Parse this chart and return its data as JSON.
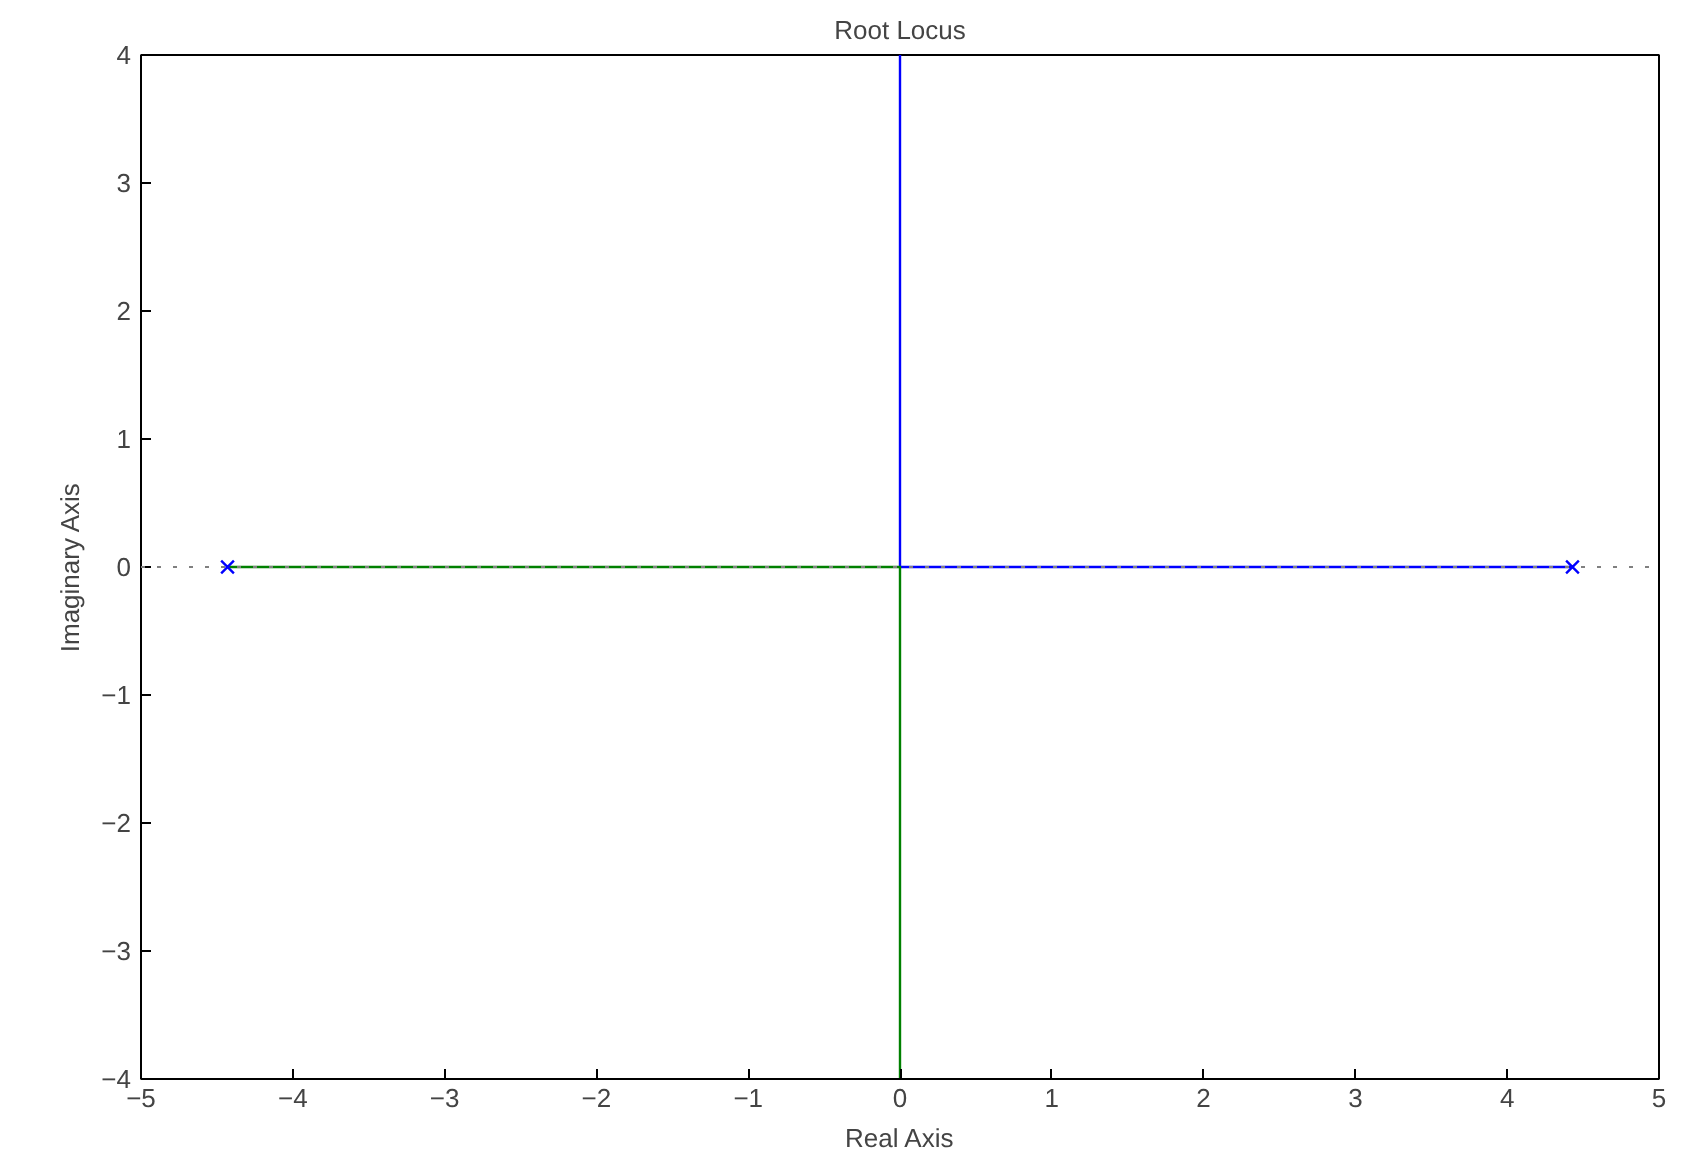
{
  "chart_data": {
    "type": "line",
    "title": "Root Locus",
    "xlabel": "Real Axis",
    "ylabel": "Imaginary Axis",
    "xlim": [
      -5,
      5
    ],
    "ylim": [
      -4,
      4
    ],
    "xticks": [
      -5,
      -4,
      -3,
      -2,
      -1,
      0,
      1,
      2,
      3,
      4,
      5
    ],
    "yticks": [
      -4,
      -3,
      -2,
      -1,
      0,
      1,
      2,
      3,
      4
    ],
    "grid": false,
    "ref_lines": [
      {
        "axis": "y",
        "value": 0,
        "label": null,
        "color": "#808080",
        "line_style": "dotted"
      }
    ],
    "series": [
      {
        "color": "#0000ff",
        "x": [
          4.43,
          0,
          0
        ],
        "values": [
          0,
          0,
          4
        ]
      },
      {
        "color": "#008000",
        "x": [
          -4.43,
          0,
          0
        ],
        "values": [
          0,
          0,
          -4
        ]
      },
      {
        "type": "scatter",
        "marker": "cross",
        "color": "#0000ff",
        "x": [
          -4.43,
          4.43
        ],
        "values": [
          0,
          0
        ]
      }
    ]
  }
}
